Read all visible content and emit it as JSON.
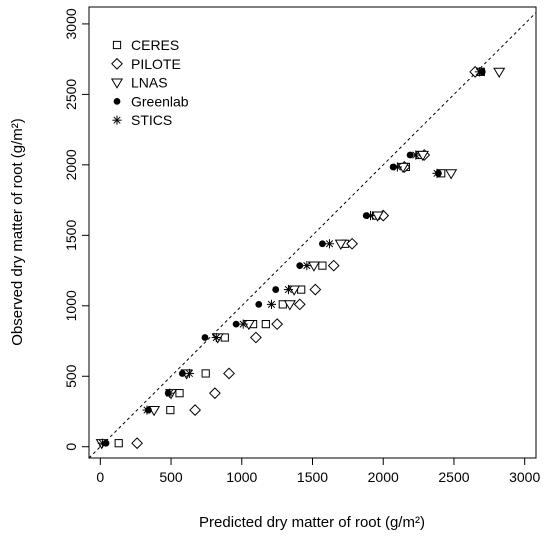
{
  "chart_data": {
    "type": "scatter",
    "title": "",
    "xlabel": "Predicted dry matter of root (g/m²)",
    "ylabel": "Observed dry matter of root (g/m²)",
    "xlim": [
      -80,
      3080
    ],
    "ylim": [
      -80,
      3120
    ],
    "xticks": [
      0,
      500,
      1000,
      1500,
      2000,
      2500,
      3000
    ],
    "yticks": [
      0,
      500,
      1000,
      1500,
      2000,
      2500,
      3000
    ],
    "xtick_labels": [
      "0",
      "500",
      "1000",
      "1500",
      "2000",
      "2500",
      "3000"
    ],
    "ytick_labels": [
      "0",
      "500",
      "1000",
      "1500",
      "2000",
      "2500",
      "3000"
    ],
    "grid": false,
    "legend_position": "top-left",
    "reference_line": "1:1 dashed",
    "series": [
      {
        "name": "CERES",
        "marker": "square",
        "points": [
          [
            130,
            25
          ],
          [
            560,
            380
          ],
          [
            495,
            260
          ],
          [
            745,
            520
          ],
          [
            880,
            775
          ],
          [
            1080,
            870
          ],
          [
            1170,
            870
          ],
          [
            1290,
            1010
          ],
          [
            1420,
            1115
          ],
          [
            1570,
            1285
          ],
          [
            1730,
            1440
          ],
          [
            1950,
            1640
          ],
          [
            2160,
            1985
          ],
          [
            2260,
            2070
          ],
          [
            2410,
            1940
          ],
          [
            2690,
            2660
          ]
        ]
      },
      {
        "name": "PILOTE",
        "marker": "diamond",
        "points": [
          [
            260,
            25
          ],
          [
            670,
            260
          ],
          [
            810,
            380
          ],
          [
            910,
            520
          ],
          [
            1100,
            775
          ],
          [
            1250,
            870
          ],
          [
            1410,
            1010
          ],
          [
            1520,
            1115
          ],
          [
            1650,
            1285
          ],
          [
            1780,
            1440
          ],
          [
            2000,
            1640
          ],
          [
            2150,
            1985
          ],
          [
            2290,
            2070
          ],
          [
            2650,
            2660
          ]
        ]
      },
      {
        "name": "LNAS",
        "marker": "triangle-down",
        "points": [
          [
            10,
            25
          ],
          [
            380,
            260
          ],
          [
            500,
            380
          ],
          [
            610,
            520
          ],
          [
            830,
            775
          ],
          [
            1050,
            870
          ],
          [
            1340,
            1010
          ],
          [
            1370,
            1115
          ],
          [
            1510,
            1285
          ],
          [
            1700,
            1440
          ],
          [
            1960,
            1640
          ],
          [
            2140,
            1985
          ],
          [
            2280,
            2070
          ],
          [
            2480,
            1940
          ],
          [
            2820,
            2660
          ]
        ]
      },
      {
        "name": "Greenlab",
        "marker": "filled-circle",
        "points": [
          [
            40,
            25
          ],
          [
            340,
            260
          ],
          [
            480,
            380
          ],
          [
            580,
            520
          ],
          [
            740,
            775
          ],
          [
            960,
            870
          ],
          [
            1120,
            1010
          ],
          [
            1240,
            1115
          ],
          [
            1410,
            1285
          ],
          [
            1570,
            1440
          ],
          [
            1880,
            1640
          ],
          [
            2070,
            1985
          ],
          [
            2190,
            2070
          ],
          [
            2390,
            1940
          ],
          [
            2700,
            2660
          ]
        ]
      },
      {
        "name": "STICS",
        "marker": "asterisk",
        "points": [
          [
            15,
            25
          ],
          [
            330,
            260
          ],
          [
            490,
            380
          ],
          [
            630,
            520
          ],
          [
            820,
            775
          ],
          [
            1010,
            870
          ],
          [
            1210,
            1010
          ],
          [
            1330,
            1115
          ],
          [
            1460,
            1285
          ],
          [
            1620,
            1440
          ],
          [
            1910,
            1640
          ],
          [
            2100,
            1985
          ],
          [
            2230,
            2070
          ],
          [
            2380,
            1940
          ],
          [
            2680,
            2660
          ]
        ]
      }
    ]
  }
}
